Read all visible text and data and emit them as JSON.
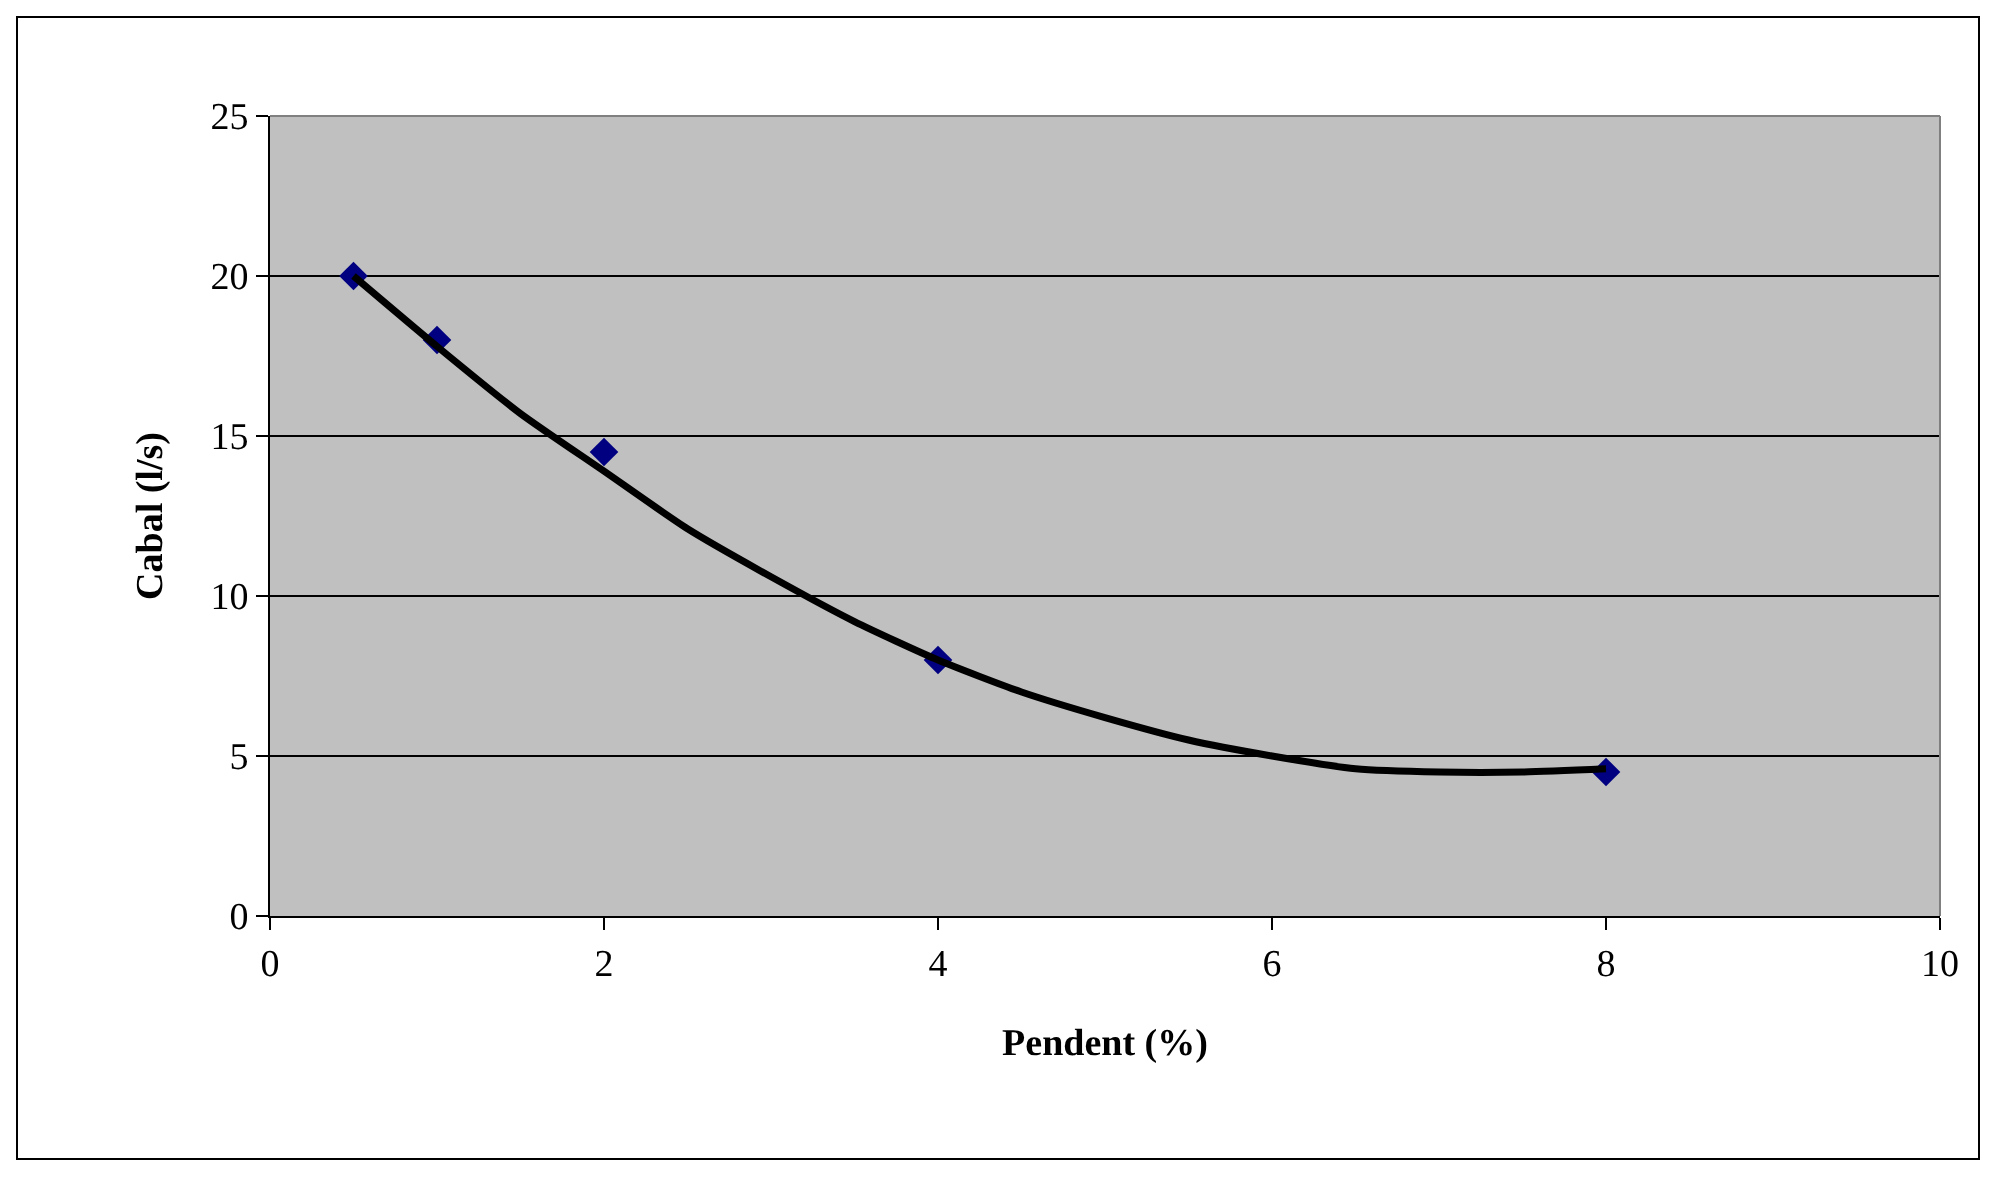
{
  "chart_data": {
    "type": "scatter",
    "xlabel": "Pendent (%)",
    "ylabel": "Cabal (l/s)",
    "x": [
      0.5,
      1,
      2,
      4,
      8
    ],
    "series": [
      {
        "color": "#000080",
        "values": [
          20,
          18,
          14.5,
          8,
          4.5
        ],
        "marker": "diamond"
      },
      {
        "type": "line",
        "color": "#000000",
        "x": [
          0.5,
          1,
          1.5,
          2,
          2.5,
          3,
          3.5,
          4,
          4.5,
          5,
          5.5,
          6,
          6.5,
          7,
          7.5,
          8
        ],
        "values": [
          20.0,
          17.8,
          15.7,
          13.9,
          12.1,
          10.6,
          9.2,
          8.0,
          7.0,
          6.2,
          5.5,
          5.0,
          4.6,
          4.5,
          4.5,
          4.6
        ],
        "marker": "none",
        "line_style": "solid"
      }
    ],
    "xlim": [
      0,
      10
    ],
    "xticks": [
      0,
      2,
      4,
      6,
      8,
      10
    ],
    "ylim": [
      0,
      25
    ],
    "yticks": [
      0,
      5,
      10,
      15,
      20,
      25
    ],
    "grid": "y"
  }
}
